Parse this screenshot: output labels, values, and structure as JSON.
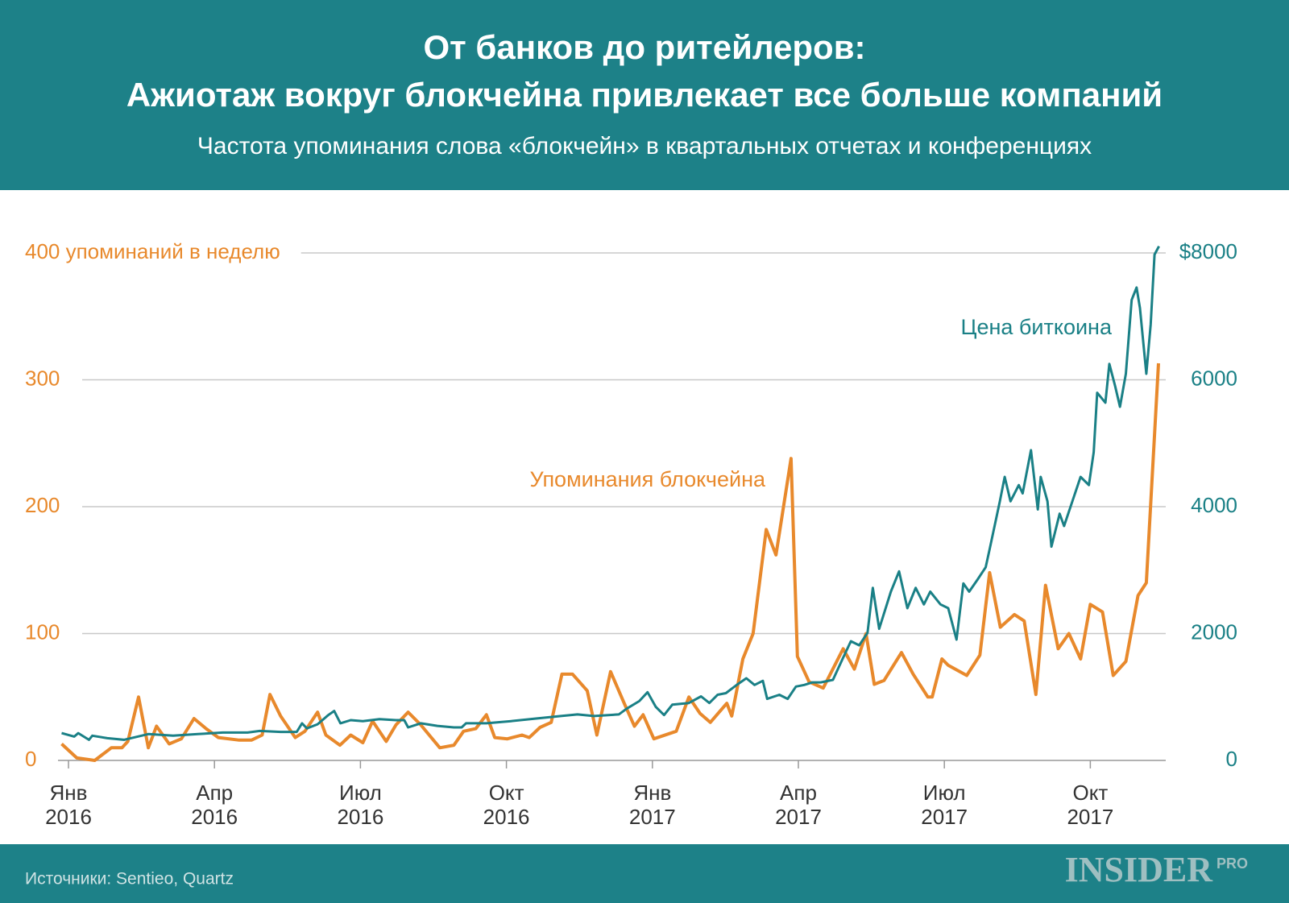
{
  "chart_data": {
    "type": "line",
    "title": [
      "От банков до ритейлеров:",
      "Ажиотаж вокруг блокчейна привлекает все больше компаний"
    ],
    "subtitle": "Частота упоминания слова «блокчейн» в квартальных отчетах и конференциях",
    "source": "Источники: Sentieo, Quartz",
    "logo": [
      "INSIDER",
      "PRO"
    ],
    "xlim": [
      -0.5,
      23
    ],
    "xticks": [
      {
        "value": 0,
        "label": "Янв 2016"
      },
      {
        "value": 3,
        "label": "Апр 2016"
      },
      {
        "value": 6,
        "label": "Июл 2016"
      },
      {
        "value": 9,
        "label": "Окт 2016"
      },
      {
        "value": 12,
        "label": "Янв 2017"
      },
      {
        "value": 15,
        "label": "Апр 2017"
      },
      {
        "value": 18,
        "label": "Июл 2017"
      },
      {
        "value": 21,
        "label": "Окт 2017"
      }
    ],
    "ylim": [
      0,
      400
    ],
    "yticks": [
      0,
      100,
      200,
      300,
      {
        "value": 400,
        "label": "400 упоминаний в неделю"
      }
    ],
    "y2lim": [
      0,
      8000
    ],
    "y2ticks": [
      0,
      2000,
      4000,
      6000,
      {
        "value": 8000,
        "label": "$8000"
      }
    ],
    "grid": true,
    "series": [
      {
        "name": "Упоминания блокчейна",
        "color": "#e8892c",
        "axis": "y",
        "x": [
          -0.14,
          0.17,
          0.54,
          0.88,
          1.1,
          1.22,
          1.44,
          1.64,
          1.81,
          2.07,
          2.32,
          2.58,
          2.83,
          3.08,
          3.51,
          3.76,
          3.98,
          4.14,
          4.36,
          4.66,
          4.86,
          5.12,
          5.29,
          5.58,
          5.8,
          6.05,
          6.25,
          6.53,
          6.73,
          6.98,
          7.24,
          7.63,
          7.92,
          8.12,
          8.37,
          8.59,
          8.76,
          9.02,
          9.32,
          9.47,
          9.69,
          9.92,
          10.14,
          10.36,
          10.66,
          10.86,
          11.14,
          11.42,
          11.63,
          11.81,
          12.03,
          12.49,
          12.75,
          12.98,
          13.19,
          13.53,
          13.63,
          13.86,
          14.07,
          14.34,
          14.54,
          14.85,
          14.98,
          15.22,
          15.51,
          15.92,
          16.15,
          16.39,
          16.56,
          16.76,
          17.12,
          17.36,
          17.66,
          17.75,
          17.95,
          18.08,
          18.46,
          18.73,
          18.93,
          19.15,
          19.44,
          19.64,
          19.88,
          20.08,
          20.34,
          20.56,
          20.8,
          21.0,
          21.25,
          21.47,
          21.73,
          21.98,
          22.15,
          22.4
        ],
        "values": [
          13,
          2,
          0,
          10,
          10,
          15,
          50,
          10,
          27,
          13,
          17,
          33,
          25,
          18,
          16,
          16,
          20,
          52,
          35,
          18,
          23,
          38,
          20,
          12,
          20,
          14,
          31,
          15,
          28,
          38,
          28,
          10,
          12,
          23,
          25,
          36,
          18,
          17,
          20,
          18,
          26,
          30,
          68,
          68,
          55,
          20,
          70,
          45,
          27,
          36,
          17,
          23,
          50,
          37,
          30,
          45,
          35,
          80,
          100,
          182,
          162,
          238,
          82,
          62,
          57,
          88,
          72,
          100,
          60,
          63,
          85,
          68,
          50,
          50,
          80,
          75,
          67,
          83,
          148,
          105,
          115,
          110,
          52,
          138,
          88,
          100,
          80,
          123,
          117,
          67,
          78,
          130,
          140,
          313
        ]
      },
      {
        "name": "Цена биткоина",
        "color": "#1a8086",
        "axis": "y2",
        "x": [
          -0.14,
          0.12,
          0.2,
          0.42,
          0.49,
          0.8,
          1.14,
          1.64,
          2.15,
          2.66,
          3.17,
          3.68,
          3.93,
          4.36,
          4.69,
          4.8,
          4.9,
          5.12,
          5.34,
          5.46,
          5.59,
          5.8,
          6.05,
          6.39,
          6.73,
          6.9,
          6.98,
          7.24,
          7.58,
          7.92,
          8.08,
          8.17,
          8.59,
          9.1,
          9.61,
          10.12,
          10.46,
          10.8,
          11.31,
          11.47,
          11.73,
          11.9,
          12.07,
          12.24,
          12.41,
          12.75,
          13.0,
          13.17,
          13.34,
          13.51,
          13.76,
          13.93,
          14.1,
          14.27,
          14.36,
          14.61,
          14.78,
          14.95,
          15.12,
          15.29,
          15.46,
          15.71,
          15.92,
          16.08,
          16.25,
          16.42,
          16.53,
          16.66,
          16.9,
          17.07,
          17.24,
          17.41,
          17.58,
          17.71,
          17.92,
          18.08,
          18.25,
          18.39,
          18.51,
          18.68,
          18.85,
          18.93,
          19.14,
          19.24,
          19.36,
          19.53,
          19.61,
          19.78,
          19.92,
          19.98,
          20.12,
          20.2,
          20.37,
          20.46,
          20.63,
          20.8,
          20.97,
          21.07,
          21.14,
          21.31,
          21.39,
          21.51,
          21.61,
          21.73,
          21.85,
          21.95,
          22.02,
          22.15,
          22.24,
          22.32,
          22.41
        ],
        "values": [
          430,
          376,
          430,
          325,
          390,
          350,
          325,
          415,
          390,
          415,
          440,
          440,
          465,
          450,
          450,
          585,
          505,
          570,
          715,
          780,
          585,
          635,
          620,
          650,
          635,
          635,
          520,
          585,
          545,
          520,
          520,
          585,
          585,
          620,
          660,
          700,
          725,
          700,
          725,
          815,
          935,
          1075,
          845,
          715,
          880,
          905,
          1010,
          905,
          1035,
          1060,
          1205,
          1295,
          1190,
          1255,
          970,
          1035,
          970,
          1165,
          1190,
          1230,
          1230,
          1270,
          1620,
          1880,
          1815,
          2010,
          2720,
          2075,
          2660,
          2980,
          2400,
          2720,
          2460,
          2660,
          2460,
          2400,
          1905,
          2790,
          2660,
          2850,
          3045,
          3330,
          4085,
          4470,
          4085,
          4340,
          4210,
          4890,
          3955,
          4470,
          4085,
          3370,
          3890,
          3695,
          4085,
          4470,
          4340,
          4860,
          5795,
          5640,
          6250,
          5900,
          5575,
          6095,
          7260,
          7455,
          7130,
          6095,
          6870,
          7975,
          8105
        ]
      }
    ]
  }
}
